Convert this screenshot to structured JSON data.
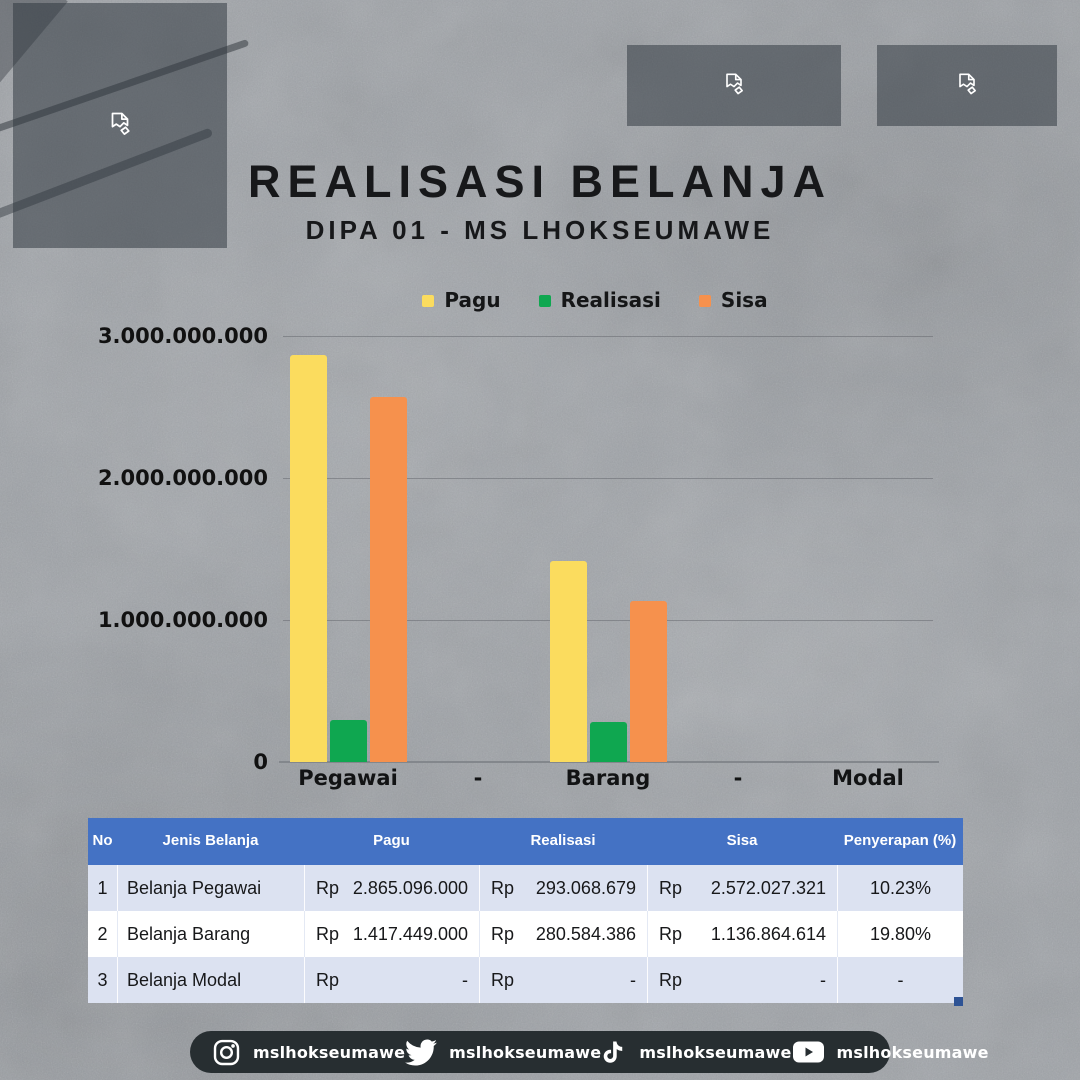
{
  "header": {
    "title": "REALISASI BELANJA",
    "subtitle": "DIPA 01 - MS LHOKSEUMAWE"
  },
  "legend": {
    "items": [
      {
        "label": "Pagu",
        "color": "#FBDC5E"
      },
      {
        "label": "Realisasi",
        "color": "#0FA750"
      },
      {
        "label": "Sisa",
        "color": "#F6914D"
      }
    ]
  },
  "chart_data": {
    "type": "bar",
    "categories": [
      "Pegawai",
      "-",
      "Barang",
      "-",
      "Modal"
    ],
    "series": [
      {
        "name": "Pagu",
        "color": "#FBDC5E",
        "values": [
          2865096000,
          0,
          1417449000,
          0,
          0
        ]
      },
      {
        "name": "Realisasi",
        "color": "#0FA750",
        "values": [
          293068679,
          0,
          280584386,
          0,
          0
        ]
      },
      {
        "name": "Sisa",
        "color": "#F6914D",
        "values": [
          2572027321,
          0,
          1136864614,
          0,
          0
        ]
      }
    ],
    "ylim": [
      0,
      3000000000
    ],
    "yticks": [
      "3.000.000.000",
      "2.000.000.000",
      "1.000.000.000",
      "0"
    ],
    "grid": true,
    "legend_position": "top"
  },
  "table": {
    "headers": [
      "No",
      "Jenis Belanja",
      "Pagu",
      "Realisasi",
      "Sisa",
      "Penyerapan (%)"
    ],
    "rows": [
      {
        "no": "1",
        "jenis": "Belanja Pegawai",
        "pagu_cur": "Rp",
        "pagu": "2.865.096.000",
        "real_cur": "Rp",
        "real": "293.068.679",
        "sisa_cur": "Rp",
        "sisa": "2.572.027.321",
        "penyerapan": "10.23%"
      },
      {
        "no": "2",
        "jenis": "Belanja Barang",
        "pagu_cur": "Rp",
        "pagu": "1.417.449.000",
        "real_cur": "Rp",
        "real": "280.584.386",
        "sisa_cur": "Rp",
        "sisa": "1.136.864.614",
        "penyerapan": "19.80%"
      },
      {
        "no": "3",
        "jenis": "Belanja Modal",
        "pagu_cur": "Rp",
        "pagu": "-",
        "real_cur": "Rp",
        "real": "-",
        "sisa_cur": "Rp",
        "sisa": "-",
        "penyerapan": "-"
      }
    ]
  },
  "footer": {
    "accounts": [
      {
        "platform": "instagram",
        "handle": "mslhokseumawe"
      },
      {
        "platform": "twitter",
        "handle": "mslhokseumawe"
      },
      {
        "platform": "tiktok",
        "handle": "mslhokseumawe"
      },
      {
        "platform": "youtube",
        "handle": "mslhokseumawe"
      }
    ]
  },
  "colors": {
    "table_header_bg": "#4472C4",
    "table_row_alt_bg": "#DCE2F1",
    "footer_bg": "#272E31",
    "background": "#9EA2A7"
  }
}
